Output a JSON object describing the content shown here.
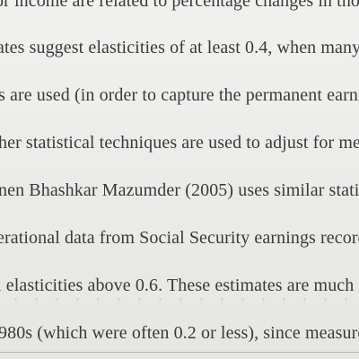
{
  "document": {
    "lines": [
      "or income are related to percentage changes in tho",
      "ates suggest elasticities of at least 0.4, when many",
      "s are used (in order to capture the permanent earnin",
      "her statistical techniques are used to adjust for mea",
      "nen Bhashkar Mazumder (2005) uses similar statis",
      "erational data from Social Security earnings record",
      "l elasticities above 0.6. These estimates are much",
      "980s (which were often 0.2 or less), since measure"
    ]
  }
}
